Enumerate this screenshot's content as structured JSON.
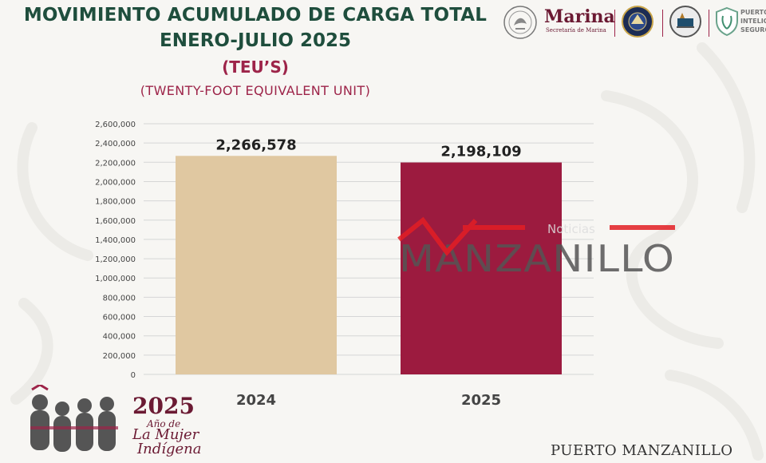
{
  "header": {
    "title_line1": "MOVIMIENTO ACUMULADO DE CARGA TOTAL",
    "title_line2": "ENERO-JULIO 2025",
    "unit": "(TEU’S)",
    "unit_full": "(TWENTY-FOOT EQUIVALENT UNIT)"
  },
  "logos": {
    "marina_name": "Marina",
    "marina_sub": "Secretaría de Marina",
    "puertos_text": "PUERTO INTELIGENTE SEGURO",
    "icons": [
      "mexico-shield-icon",
      "naval-seal-icon",
      "port-authority-seal-icon",
      "smart-port-shield-icon"
    ]
  },
  "chart_data": {
    "type": "bar",
    "categories": [
      "2024",
      "2025"
    ],
    "values": [
      2266578,
      2198109
    ],
    "value_labels": [
      "2,266,578",
      "2,198,109"
    ],
    "bar_colors": [
      "#e0c8a1",
      "#9c1b3f"
    ],
    "ylim": [
      0,
      2600000
    ],
    "yticks": [
      "0",
      "200,000",
      "400,000",
      "600,000",
      "800,000",
      "1,000,000",
      "1,200,000",
      "1,400,000",
      "1,600,000",
      "1,800,000",
      "2,000,000",
      "2,200,000",
      "2,400,000",
      "2,600,000"
    ],
    "grid": true
  },
  "watermark": {
    "small": "Noticias",
    "big": "MANZANILLO",
    "accent_color": "#e31e24"
  },
  "footer": {
    "year": "2025",
    "sub1": "Año de",
    "sub2": "La Mujer",
    "sub3": "Indígena",
    "place": "PUERTO MANZANILLO"
  }
}
